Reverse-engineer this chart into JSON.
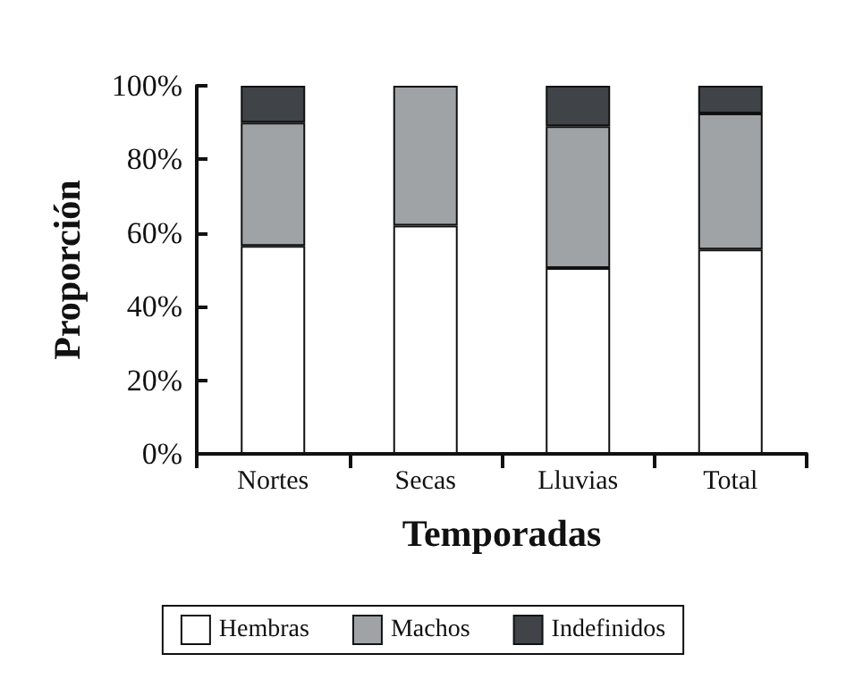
{
  "chart_data": {
    "type": "bar",
    "stacked": true,
    "xlabel": "Temporadas",
    "ylabel": "Proporción",
    "categories": [
      "Nortes",
      "Secas",
      "Lluvias",
      "Total"
    ],
    "series": [
      {
        "name": "Hembras",
        "color": "#ffffff",
        "values": [
          56.5,
          62,
          50.5,
          55.5
        ]
      },
      {
        "name": "Machos",
        "color": "#a0a3a6",
        "values": [
          33.5,
          38,
          38.5,
          37
        ]
      },
      {
        "name": "Indefinidos",
        "color": "#404347",
        "values": [
          10,
          0,
          11,
          7.5
        ]
      }
    ],
    "ylim": [
      0,
      100
    ],
    "yticks": [
      {
        "value": 0,
        "label": "0%"
      },
      {
        "value": 20,
        "label": "20%"
      },
      {
        "value": 40,
        "label": "40%"
      },
      {
        "value": 60,
        "label": "60%"
      },
      {
        "value": 80,
        "label": "80%"
      },
      {
        "value": 100,
        "label": "100%"
      }
    ],
    "grid": false,
    "legend": "bottom"
  }
}
